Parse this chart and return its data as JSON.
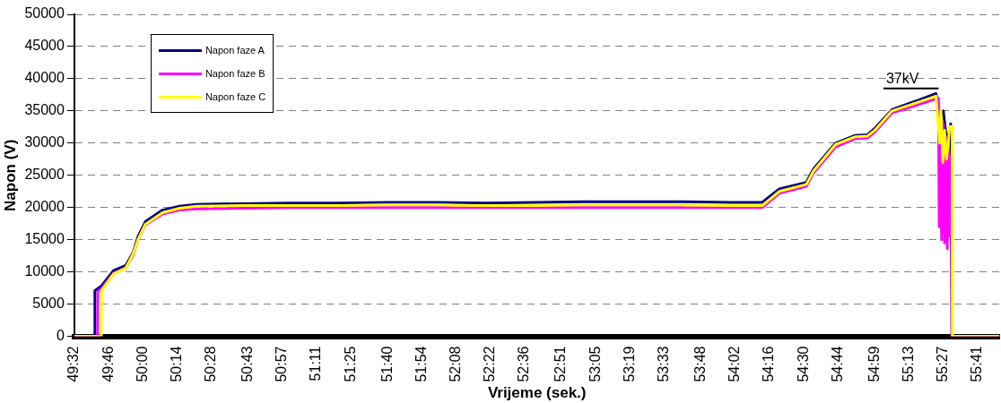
{
  "chart_data": {
    "type": "line",
    "xlabel": "Vrijeme (sek.)",
    "ylabel": "Napon (V)",
    "xlim": [
      2972,
      3350
    ],
    "ylim": [
      0,
      50000
    ],
    "xticks": [
      {
        "value": 2972,
        "label": "49:32"
      },
      {
        "value": 2986,
        "label": "49:46"
      },
      {
        "value": 3000,
        "label": "50:00"
      },
      {
        "value": 3014,
        "label": "50:14"
      },
      {
        "value": 3028,
        "label": "50:28"
      },
      {
        "value": 3043,
        "label": "50:43"
      },
      {
        "value": 3057,
        "label": "50:57"
      },
      {
        "value": 3071,
        "label": "51:11"
      },
      {
        "value": 3085,
        "label": "51:25"
      },
      {
        "value": 3100,
        "label": "51:40"
      },
      {
        "value": 3114,
        "label": "51:54"
      },
      {
        "value": 3128,
        "label": "52:08"
      },
      {
        "value": 3142,
        "label": "52:22"
      },
      {
        "value": 3156,
        "label": "52:36"
      },
      {
        "value": 3171,
        "label": "52:51"
      },
      {
        "value": 3185,
        "label": "53:05"
      },
      {
        "value": 3199,
        "label": "53:19"
      },
      {
        "value": 3213,
        "label": "53:33"
      },
      {
        "value": 3228,
        "label": "53:48"
      },
      {
        "value": 3242,
        "label": "54:02"
      },
      {
        "value": 3256,
        "label": "54:16"
      },
      {
        "value": 3270,
        "label": "54:30"
      },
      {
        "value": 3284,
        "label": "54:44"
      },
      {
        "value": 3299,
        "label": "54:59"
      },
      {
        "value": 3313,
        "label": "55:13"
      },
      {
        "value": 3327,
        "label": "55:27"
      },
      {
        "value": 3341,
        "label": "55:41"
      }
    ],
    "yticks": [
      0,
      5000,
      10000,
      15000,
      20000,
      25000,
      30000,
      35000,
      40000,
      45000,
      50000
    ],
    "grid": "y",
    "legend": "top left",
    "marker": "none",
    "line_style": "solid",
    "annotations": [
      "37kV"
    ],
    "series": [
      {
        "name": "Napon faze A",
        "color": "#000080",
        "x": [
          2972,
          2980.3,
          2980.4,
          2983,
          2988,
          2993,
          2996,
          2998,
          3001,
          3008,
          3015,
          3022,
          3040,
          3060,
          3080,
          3100,
          3120,
          3140,
          3160,
          3180,
          3200,
          3220,
          3240,
          3253,
          3260,
          3271,
          3274,
          3283,
          3291,
          3296,
          3299,
          3306,
          3317,
          3324,
          3325.5,
          3327,
          3328.5,
          3330,
          3330.5,
          3350
        ],
        "values": [
          0,
          0,
          7100,
          7800,
          10200,
          11000,
          13000,
          15500,
          17800,
          19600,
          20200,
          20500,
          20600,
          20700,
          20700,
          20800,
          20800,
          20700,
          20800,
          20900,
          20900,
          20900,
          20800,
          20800,
          22900,
          23900,
          26000,
          30000,
          31200,
          31300,
          32300,
          35200,
          36700,
          37700,
          34000,
          35000,
          30000,
          33000,
          0,
          0
        ]
      },
      {
        "name": "Napon faze B",
        "color": "#ff00ff",
        "x": [
          2972,
          2981.5,
          2981.6,
          2983,
          2988,
          2993,
          2996,
          2998,
          3001,
          3008,
          3015,
          3022,
          3040,
          3060,
          3080,
          3100,
          3120,
          3140,
          3160,
          3180,
          3200,
          3220,
          3240,
          3253,
          3260,
          3271,
          3274,
          3283,
          3291,
          3296,
          3299,
          3306,
          3317,
          3325,
          3325.3,
          3325.8,
          3326.3,
          3327,
          3327.5,
          3328,
          3328.6,
          3329.2,
          3329.8,
          3330.3,
          3330.5,
          3350
        ],
        "values": [
          0,
          0,
          7000,
          7400,
          9800,
          10600,
          12600,
          15000,
          17300,
          19000,
          19600,
          19800,
          19900,
          20000,
          20000,
          20000,
          20000,
          20000,
          20000,
          20000,
          20000,
          20000,
          20000,
          20000,
          22200,
          23300,
          25400,
          29400,
          30700,
          30800,
          31700,
          34700,
          36000,
          37000,
          17000,
          35000,
          15000,
          33000,
          14500,
          31000,
          13600,
          29000,
          15500,
          28000,
          0,
          0
        ]
      },
      {
        "name": "Napon faze C",
        "color": "#ffff00",
        "x": [
          2972,
          2983,
          2983.1,
          2988,
          2993,
          2996,
          2998,
          3001,
          3008,
          3015,
          3022,
          3040,
          3060,
          3080,
          3100,
          3120,
          3140,
          3160,
          3180,
          3200,
          3220,
          3240,
          3253,
          3260,
          3271,
          3274,
          3283,
          3291,
          3296,
          3299,
          3306,
          3317,
          3324,
          3325.5,
          3326,
          3326.8,
          3327.5,
          3328.3,
          3329,
          3329.6,
          3330.6,
          3330.7,
          3350
        ],
        "values": [
          0,
          0,
          7100,
          9700,
          10600,
          12800,
          15000,
          17400,
          19200,
          19900,
          20200,
          20300,
          20300,
          20300,
          20400,
          20400,
          20300,
          20300,
          20400,
          20400,
          20400,
          20300,
          20300,
          22500,
          23600,
          25700,
          29800,
          31000,
          31100,
          32000,
          35000,
          36400,
          37300,
          30000,
          35000,
          27000,
          32000,
          27500,
          30000,
          32600,
          32600,
          0,
          0
        ]
      }
    ]
  }
}
